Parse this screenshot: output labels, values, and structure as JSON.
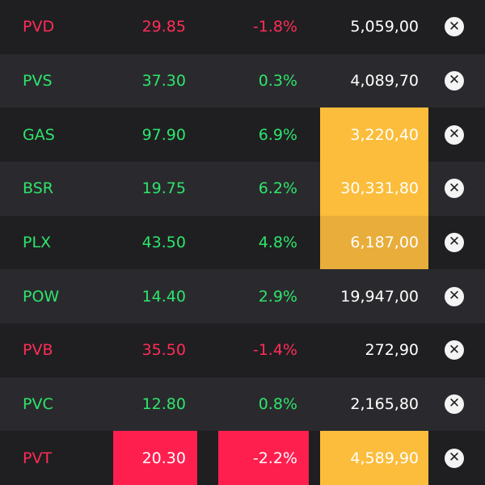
{
  "remove_glyph": "✕",
  "colors": {
    "up": "#2ee56b",
    "down": "#ff2d55",
    "volume_highlight": "#fbbd3b",
    "price_highlight": "#ff1f4f"
  },
  "rows": [
    {
      "symbol": "PVD",
      "price": "29.85",
      "change": "-1.8%",
      "volume": "5,059,00",
      "trend": "down"
    },
    {
      "symbol": "PVS",
      "price": "37.30",
      "change": "0.3%",
      "volume": "4,089,70",
      "trend": "up"
    },
    {
      "symbol": "GAS",
      "price": "97.90",
      "change": "6.9%",
      "volume": "3,220,40",
      "trend": "up",
      "volume_highlight": true
    },
    {
      "symbol": "BSR",
      "price": "19.75",
      "change": "6.2%",
      "volume": "30,331,80",
      "trend": "up",
      "volume_highlight": true
    },
    {
      "symbol": "PLX",
      "price": "43.50",
      "change": "4.8%",
      "volume": "6,187,00",
      "trend": "up",
      "volume_highlight": true
    },
    {
      "symbol": "POW",
      "price": "14.40",
      "change": "2.9%",
      "volume": "19,947,00",
      "trend": "up"
    },
    {
      "symbol": "PVB",
      "price": "35.50",
      "change": "-1.4%",
      "volume": "272,90",
      "trend": "down"
    },
    {
      "symbol": "PVC",
      "price": "12.80",
      "change": "0.8%",
      "volume": "2,165,80",
      "trend": "up"
    },
    {
      "symbol": "PVT",
      "price": "20.30",
      "change": "-2.2%",
      "volume": "4,589,90",
      "trend": "down",
      "price_highlight": true,
      "volume_highlight": true
    }
  ]
}
